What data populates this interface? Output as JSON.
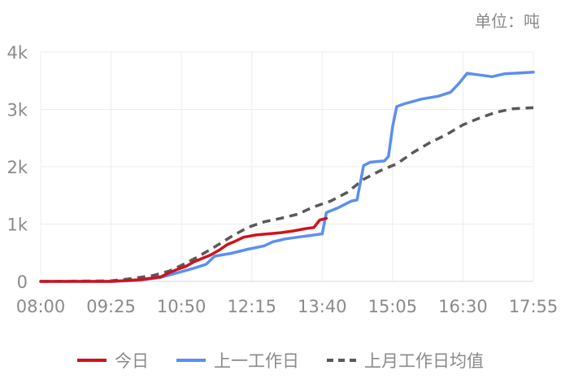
{
  "unit_label": "单位：吨",
  "chart_data": {
    "type": "line",
    "title": "",
    "xlabel": "",
    "ylabel": "",
    "x_ticks": [
      "08:00",
      "09:25",
      "10:50",
      "12:15",
      "13:40",
      "15:05",
      "16:30",
      "17:55"
    ],
    "x_range": [
      "08:00",
      "17:55"
    ],
    "y_ticks": [
      "0",
      "1k",
      "2k",
      "3k",
      "4k"
    ],
    "ylim": [
      0,
      4000
    ],
    "grid": true,
    "legend_position": "bottom",
    "series": [
      {
        "name": "今日",
        "color": "#d0121b",
        "dash": "solid",
        "points": [
          [
            "08:00",
            0
          ],
          [
            "09:25",
            0
          ],
          [
            "10:00",
            30
          ],
          [
            "10:25",
            80
          ],
          [
            "10:35",
            150
          ],
          [
            "10:45",
            210
          ],
          [
            "10:55",
            260
          ],
          [
            "11:05",
            340
          ],
          [
            "11:15",
            400
          ],
          [
            "11:25",
            460
          ],
          [
            "11:35",
            540
          ],
          [
            "11:45",
            640
          ],
          [
            "11:55",
            700
          ],
          [
            "12:05",
            770
          ],
          [
            "12:20",
            810
          ],
          [
            "12:35",
            830
          ],
          [
            "12:50",
            850
          ],
          [
            "13:05",
            880
          ],
          [
            "13:20",
            920
          ],
          [
            "13:30",
            940
          ],
          [
            "13:37",
            1070
          ],
          [
            "13:45",
            1100
          ]
        ]
      },
      {
        "name": "上一工作日",
        "color": "#5b8ff0",
        "dash": "solid",
        "points": [
          [
            "08:00",
            0
          ],
          [
            "09:25",
            0
          ],
          [
            "10:00",
            20
          ],
          [
            "10:25",
            70
          ],
          [
            "10:45",
            150
          ],
          [
            "11:05",
            230
          ],
          [
            "11:20",
            300
          ],
          [
            "11:30",
            440
          ],
          [
            "11:50",
            490
          ],
          [
            "12:10",
            560
          ],
          [
            "12:30",
            620
          ],
          [
            "12:40",
            690
          ],
          [
            "12:55",
            740
          ],
          [
            "13:10",
            770
          ],
          [
            "13:25",
            800
          ],
          [
            "13:40",
            830
          ],
          [
            "13:45",
            1200
          ],
          [
            "14:00",
            1290
          ],
          [
            "14:15",
            1400
          ],
          [
            "14:22",
            1420
          ],
          [
            "14:30",
            2020
          ],
          [
            "14:38",
            2080
          ],
          [
            "14:55",
            2100
          ],
          [
            "15:00",
            2180
          ],
          [
            "15:05",
            2700
          ],
          [
            "15:10",
            3050
          ],
          [
            "15:20",
            3100
          ],
          [
            "15:40",
            3180
          ],
          [
            "16:00",
            3230
          ],
          [
            "16:15",
            3300
          ],
          [
            "16:25",
            3450
          ],
          [
            "16:35",
            3630
          ],
          [
            "16:50",
            3600
          ],
          [
            "17:05",
            3570
          ],
          [
            "17:20",
            3620
          ],
          [
            "17:55",
            3650
          ]
        ]
      },
      {
        "name": "上月工作日均值",
        "color": "#595959",
        "dash": "dashed",
        "points": [
          [
            "08:00",
            0
          ],
          [
            "09:25",
            10
          ],
          [
            "09:50",
            50
          ],
          [
            "10:15",
            100
          ],
          [
            "10:35",
            180
          ],
          [
            "10:50",
            280
          ],
          [
            "11:10",
            430
          ],
          [
            "11:30",
            600
          ],
          [
            "11:50",
            780
          ],
          [
            "12:10",
            940
          ],
          [
            "12:30",
            1040
          ],
          [
            "12:50",
            1100
          ],
          [
            "13:10",
            1170
          ],
          [
            "13:30",
            1300
          ],
          [
            "13:50",
            1400
          ],
          [
            "14:10",
            1550
          ],
          [
            "14:30",
            1780
          ],
          [
            "14:50",
            1930
          ],
          [
            "15:10",
            2050
          ],
          [
            "15:30",
            2250
          ],
          [
            "15:50",
            2420
          ],
          [
            "16:10",
            2560
          ],
          [
            "16:30",
            2730
          ],
          [
            "16:50",
            2850
          ],
          [
            "17:10",
            2950
          ],
          [
            "17:30",
            3010
          ],
          [
            "17:55",
            3030
          ]
        ]
      }
    ]
  }
}
